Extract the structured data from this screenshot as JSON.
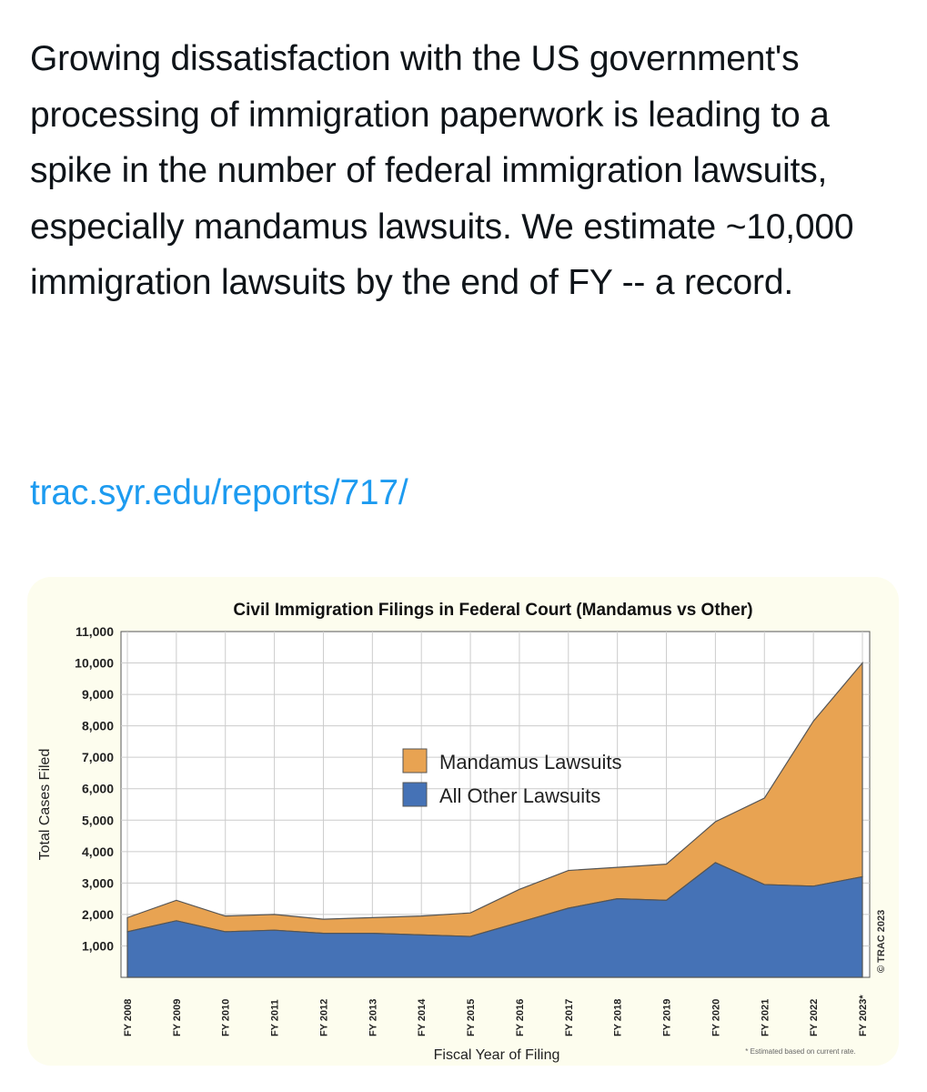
{
  "tweet": {
    "text": "Growing dissatisfaction with the US government's processing of immigration paperwork is leading to a spike in the number of federal immigration lawsuits, especially mandamus lawsuits. We estimate ~10,000 immigration lawsuits by the end of FY -- a record.",
    "link": "trac.syr.edu/reports/717/"
  },
  "chart_data": {
    "type": "area",
    "stacked": true,
    "title": "Civil Immigration Filings in Federal Court (Mandamus vs Other)",
    "xlabel": "Fiscal Year of Filing",
    "ylabel": "Total Cases Filed",
    "ylim": [
      0,
      11000
    ],
    "yticks": [
      "1,000",
      "2,000",
      "3,000",
      "4,000",
      "5,000",
      "6,000",
      "7,000",
      "8,000",
      "9,000",
      "10,000",
      "11,000"
    ],
    "categories": [
      "FY 2008",
      "FY 2009",
      "FY 2010",
      "FY 2011",
      "FY 2012",
      "FY 2013",
      "FY 2014",
      "FY 2015",
      "FY 2016",
      "FY 2017",
      "FY 2018",
      "FY 2019",
      "FY 2020",
      "FY 2021",
      "FY 2022",
      "FY 2023*"
    ],
    "series": [
      {
        "name": "All Other Lawsuits",
        "color": "#4572b6",
        "values": [
          1450,
          1800,
          1450,
          1500,
          1400,
          1400,
          1350,
          1300,
          1750,
          2200,
          2500,
          2450,
          3650,
          2950,
          2900,
          3200
        ]
      },
      {
        "name": "Mandamus Lawsuits",
        "color": "#e8a352",
        "values": [
          450,
          650,
          500,
          500,
          450,
          500,
          600,
          750,
          1050,
          1200,
          1000,
          1150,
          1300,
          2750,
          5250,
          6800
        ]
      }
    ],
    "legend_position": "center",
    "grid": true,
    "footnote": "* Estimated based on current rate.",
    "credit": "© TRAC 2023"
  }
}
